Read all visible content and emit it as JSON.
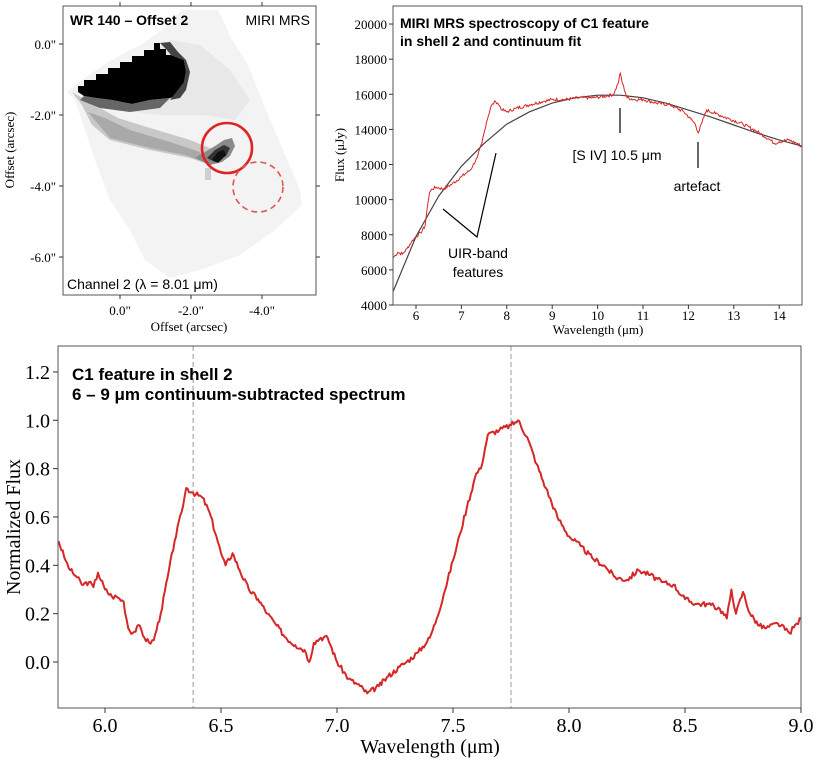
{
  "chart_data": [
    {
      "type": "heatmap",
      "title": "WR 140 – Offset 2",
      "subtitle": "MIRI MRS",
      "annotation": "Channel 2 (λ = 8.01 μm)",
      "xlabel": "Offset (arcsec)",
      "ylabel": "Offset (arcsec)",
      "xticks": [
        "0.0\"",
        "-2.0\"",
        "-4.0\""
      ],
      "yticks": [
        "0.0\"",
        "-2.0\"",
        "-4.0\"",
        "-6.0\""
      ],
      "xlim": [
        1.6,
        -5.5
      ],
      "ylim": [
        -7.1,
        1.0
      ],
      "markers": [
        {
          "type": "circle",
          "style": "solid",
          "color": "#e02020",
          "center": [
            -3.0,
            -2.95
          ],
          "radius_arcsec": 0.7
        },
        {
          "type": "circle",
          "style": "dashed",
          "color": "#e05050",
          "center": [
            -3.9,
            -4.05
          ],
          "radius_arcsec": 0.7
        }
      ],
      "colormap": "gray_r"
    },
    {
      "type": "line",
      "title": "MIRI MRS spectroscopy of C1 feature in shell 2 and continuum fit",
      "xlabel": "Wavelength (μm)",
      "ylabel": "Flux (μJy)",
      "xlim": [
        5.5,
        14.5
      ],
      "ylim": [
        4000,
        21000
      ],
      "xticks": [
        6,
        7,
        8,
        9,
        10,
        11,
        12,
        13,
        14
      ],
      "yticks": [
        4000,
        6000,
        8000,
        10000,
        12000,
        14000,
        16000,
        18000,
        20000
      ],
      "series": [
        {
          "name": "spectrum",
          "color": "#d62728",
          "x": [
            5.5,
            5.6,
            5.7,
            5.8,
            5.9,
            6.0,
            6.1,
            6.2,
            6.25,
            6.3,
            6.35,
            6.45,
            6.6,
            6.8,
            7.0,
            7.2,
            7.35,
            7.45,
            7.55,
            7.65,
            7.75,
            7.8,
            7.9,
            8.0,
            8.2,
            8.5,
            8.8,
            9.0,
            9.3,
            9.6,
            9.9,
            10.2,
            10.35,
            10.45,
            10.5,
            10.55,
            10.65,
            10.8,
            11.0,
            11.3,
            11.6,
            11.9,
            12.05,
            12.15,
            12.22,
            12.3,
            12.4,
            12.6,
            12.9,
            13.2,
            13.5,
            13.8,
            13.9,
            14.0,
            14.2,
            14.4,
            14.5
          ],
          "y": [
            6700,
            7000,
            6900,
            7200,
            7600,
            7900,
            8100,
            8500,
            9600,
            10400,
            10600,
            10700,
            10600,
            10900,
            11300,
            11700,
            12400,
            13200,
            14400,
            15300,
            15600,
            15500,
            15100,
            15000,
            15200,
            15400,
            15600,
            15700,
            15700,
            15800,
            15800,
            15900,
            16000,
            16600,
            17200,
            16600,
            15800,
            15700,
            15700,
            15500,
            15400,
            15000,
            14600,
            14300,
            13800,
            14400,
            15100,
            14900,
            14600,
            14300,
            13900,
            13400,
            13200,
            13300,
            13400,
            13200,
            13000
          ]
        },
        {
          "name": "continuum fit",
          "color": "#444444",
          "x": [
            5.5,
            6.0,
            6.5,
            7.0,
            7.5,
            8.0,
            8.5,
            9.0,
            9.5,
            10.0,
            10.5,
            11.0,
            11.5,
            12.0,
            12.5,
            13.0,
            13.5,
            14.0,
            14.5
          ],
          "y": [
            4800,
            7900,
            10200,
            11900,
            13200,
            14300,
            15000,
            15500,
            15800,
            15950,
            15950,
            15800,
            15500,
            15100,
            14700,
            14250,
            13800,
            13400,
            13050
          ]
        }
      ],
      "annotations": [
        {
          "text": "[S IV] 10.5 μm",
          "x": 10.5,
          "y": 12700
        },
        {
          "text": "artefact",
          "x": 12.2,
          "y": 11000
        },
        {
          "text": "UIR-band features",
          "x": 7.3,
          "y": 7400
        }
      ]
    },
    {
      "type": "line",
      "title": "C1 feature in shell 2",
      "subtitle": "6 – 9 μm continuum-subtracted spectrum",
      "xlabel": "Wavelength (μm)",
      "ylabel": "Normalized Flux",
      "xlim": [
        5.8,
        9.0
      ],
      "ylim": [
        -0.19,
        1.31
      ],
      "xticks": [
        6.0,
        6.5,
        7.0,
        7.5,
        8.0,
        8.5,
        9.0
      ],
      "yticks": [
        0.0,
        0.2,
        0.4,
        0.6,
        0.8,
        1.0,
        1.2
      ],
      "vlines": [
        6.38,
        7.75
      ],
      "series": [
        {
          "name": "continuum-subtracted",
          "color": "#d62728",
          "x": [
            5.8,
            5.83,
            5.85,
            5.88,
            5.9,
            5.93,
            5.95,
            5.97,
            6.0,
            6.03,
            6.05,
            6.08,
            6.1,
            6.12,
            6.15,
            6.17,
            6.19,
            6.21,
            6.24,
            6.27,
            6.3,
            6.33,
            6.35,
            6.38,
            6.42,
            6.45,
            6.48,
            6.5,
            6.52,
            6.55,
            6.58,
            6.62,
            6.66,
            6.7,
            6.74,
            6.78,
            6.82,
            6.86,
            6.88,
            6.9,
            6.93,
            6.96,
            7.0,
            7.05,
            7.1,
            7.13,
            7.18,
            7.22,
            7.27,
            7.3,
            7.35,
            7.4,
            7.43,
            7.46,
            7.5,
            7.53,
            7.56,
            7.6,
            7.62,
            7.65,
            7.7,
            7.75,
            7.78,
            7.82,
            7.86,
            7.9,
            7.95,
            8.0,
            8.05,
            8.1,
            8.15,
            8.2,
            8.25,
            8.3,
            8.35,
            8.4,
            8.45,
            8.5,
            8.55,
            8.6,
            8.65,
            8.68,
            8.7,
            8.72,
            8.75,
            8.78,
            8.82,
            8.85,
            8.9,
            8.95,
            9.0
          ],
          "y": [
            0.5,
            0.42,
            0.38,
            0.35,
            0.32,
            0.33,
            0.31,
            0.37,
            0.3,
            0.27,
            0.27,
            0.25,
            0.14,
            0.12,
            0.15,
            0.1,
            0.08,
            0.09,
            0.2,
            0.35,
            0.5,
            0.62,
            0.72,
            0.7,
            0.68,
            0.62,
            0.52,
            0.45,
            0.4,
            0.45,
            0.38,
            0.3,
            0.26,
            0.2,
            0.15,
            0.1,
            0.07,
            0.05,
            0.0,
            0.08,
            0.1,
            0.1,
            0.0,
            -0.07,
            -0.1,
            -0.13,
            -0.1,
            -0.06,
            -0.02,
            0.0,
            0.04,
            0.1,
            0.18,
            0.28,
            0.42,
            0.53,
            0.64,
            0.78,
            0.8,
            0.94,
            0.96,
            0.98,
            1.0,
            0.93,
            0.82,
            0.72,
            0.6,
            0.52,
            0.48,
            0.43,
            0.4,
            0.35,
            0.34,
            0.38,
            0.36,
            0.33,
            0.32,
            0.26,
            0.24,
            0.24,
            0.22,
            0.18,
            0.3,
            0.2,
            0.29,
            0.2,
            0.15,
            0.14,
            0.16,
            0.12,
            0.18
          ]
        }
      ]
    }
  ],
  "panels": {
    "image": {
      "title": "WR 140 – Offset 2",
      "instrument": "MIRI MRS",
      "channel": "Channel 2 (λ = 8.01 μm)",
      "xlabel": "Offset (arcsec)",
      "ylabel": "Offset (arcsec)"
    },
    "spectrum": {
      "title_line1": "MIRI MRS spectroscopy of C1 feature",
      "title_line2": "in shell 2 and continuum fit",
      "xlabel": "Wavelength (μm)",
      "ylabel": "Flux (μJy)",
      "label_siv": "[S IV] 10.5 μm",
      "label_artefact": "artefact",
      "label_uir_1": "UIR-band",
      "label_uir_2": "features"
    },
    "subtracted": {
      "title_line1": "C1 feature in shell 2",
      "title_line2": "6 – 9 μm continuum-subtracted spectrum",
      "xlabel": "Wavelength (μm)",
      "ylabel": "Normalized Flux"
    }
  }
}
